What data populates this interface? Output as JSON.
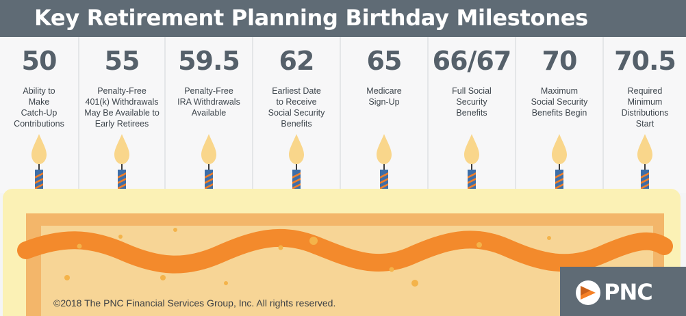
{
  "title": "Key Retirement Planning Birthday Milestones",
  "milestones": [
    {
      "age": "50",
      "description": "Ability to\nMake\nCatch-Up\nContributions"
    },
    {
      "age": "55",
      "description": "Penalty-Free\n401(k) Withdrawals\nMay Be Available to\nEarly Retirees"
    },
    {
      "age": "59.5",
      "description": "Penalty-Free\nIRA Withdrawals\nAvailable"
    },
    {
      "age": "62",
      "description": "Earliest Date\nto Receive\nSocial Security\nBenefits"
    },
    {
      "age": "65",
      "description": "Medicare\nSign-Up"
    },
    {
      "age": "66/67",
      "description": "Full Social\nSecurity\nBenefits"
    },
    {
      "age": "70",
      "description": "Maximum\nSocial Security\nBenefits Begin"
    },
    {
      "age": "70.5",
      "description": "Required\nMinimum\nDistributions\nStart"
    }
  ],
  "copyright": "©2018 The PNC Financial Services Group, Inc. All rights reserved.",
  "logo": {
    "text": "PNC",
    "icon": "pnc-triangle-logo-icon"
  },
  "colors": {
    "header": "#5f6b75",
    "number": "#55606a",
    "flame": "#f9d68b",
    "candle_blue": "#3d6ea8",
    "candle_orange": "#f07f2a",
    "frosting": "#fbf1b5",
    "cake": "#f7d596",
    "wave": "#f38a2c",
    "logo_orange": "#f58025"
  }
}
